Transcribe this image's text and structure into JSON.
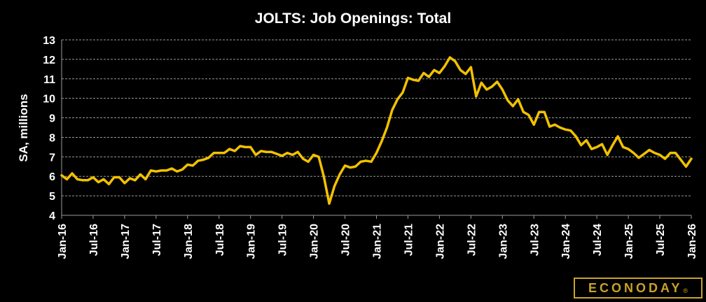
{
  "chart_data": {
    "type": "line",
    "title": "JOLTS: Job Openings: Total",
    "ylabel": "SA, millions",
    "xlabel": "",
    "ylim": [
      4,
      13
    ],
    "yticks": [
      "4",
      "5",
      "6",
      "7",
      "8",
      "9",
      "10",
      "11",
      "12",
      "13"
    ],
    "x_start": "Jan-16",
    "x_end": "Jan-26",
    "xticks": [
      "Jan-16",
      "Jul-16",
      "Jan-17",
      "Jul-17",
      "Jan-18",
      "Jul-18",
      "Jan-19",
      "Jul-19",
      "Jan-20",
      "Jul-20",
      "Jan-21",
      "Jul-21",
      "Jan-22",
      "Jul-22",
      "Jan-23",
      "Jul-23",
      "Jan-24",
      "Jul-24",
      "Jan-25",
      "Jul-25",
      "Jan-26"
    ],
    "grid": true,
    "line_color": "#f2c100",
    "series": [
      {
        "values": [
          6.05,
          5.85,
          6.15,
          5.85,
          5.8,
          5.8,
          5.95,
          5.7,
          5.85,
          5.6,
          5.95,
          5.95,
          5.65,
          5.9,
          5.8,
          6.1,
          5.85,
          6.3,
          6.25,
          6.3,
          6.3,
          6.4,
          6.25,
          6.35,
          6.6,
          6.55,
          6.8,
          6.85,
          6.95,
          7.2,
          7.2,
          7.2,
          7.4,
          7.3,
          7.55,
          7.5,
          7.5,
          7.1,
          7.3,
          7.25,
          7.25,
          7.15,
          7.05,
          7.2,
          7.1,
          7.25,
          6.9,
          6.75,
          7.1,
          7.0,
          5.95,
          4.6,
          5.5,
          6.1,
          6.55,
          6.45,
          6.5,
          6.75,
          6.8,
          6.75,
          7.2,
          7.8,
          8.5,
          9.4,
          9.95,
          10.3,
          11.05,
          10.95,
          10.9,
          11.3,
          11.1,
          11.45,
          11.3,
          11.65,
          12.1,
          11.9,
          11.45,
          11.25,
          11.6,
          10.1,
          10.8,
          10.45,
          10.6,
          10.85,
          10.45,
          9.9,
          9.6,
          9.95,
          9.3,
          9.15,
          8.65,
          9.3,
          9.3,
          8.55,
          8.65,
          8.5,
          8.4,
          8.35,
          8.05,
          7.6,
          7.85,
          7.4,
          7.5,
          7.65,
          7.1,
          7.6,
          8.05,
          7.5,
          7.4,
          7.2,
          6.95,
          7.15,
          7.35,
          7.2,
          7.1,
          6.9,
          7.2,
          7.2,
          6.85,
          6.5,
          6.9
        ]
      }
    ]
  },
  "brand": {
    "logo_text": "ECONODAY",
    "logo_mark": "®",
    "brand_color": "#c9a227"
  }
}
